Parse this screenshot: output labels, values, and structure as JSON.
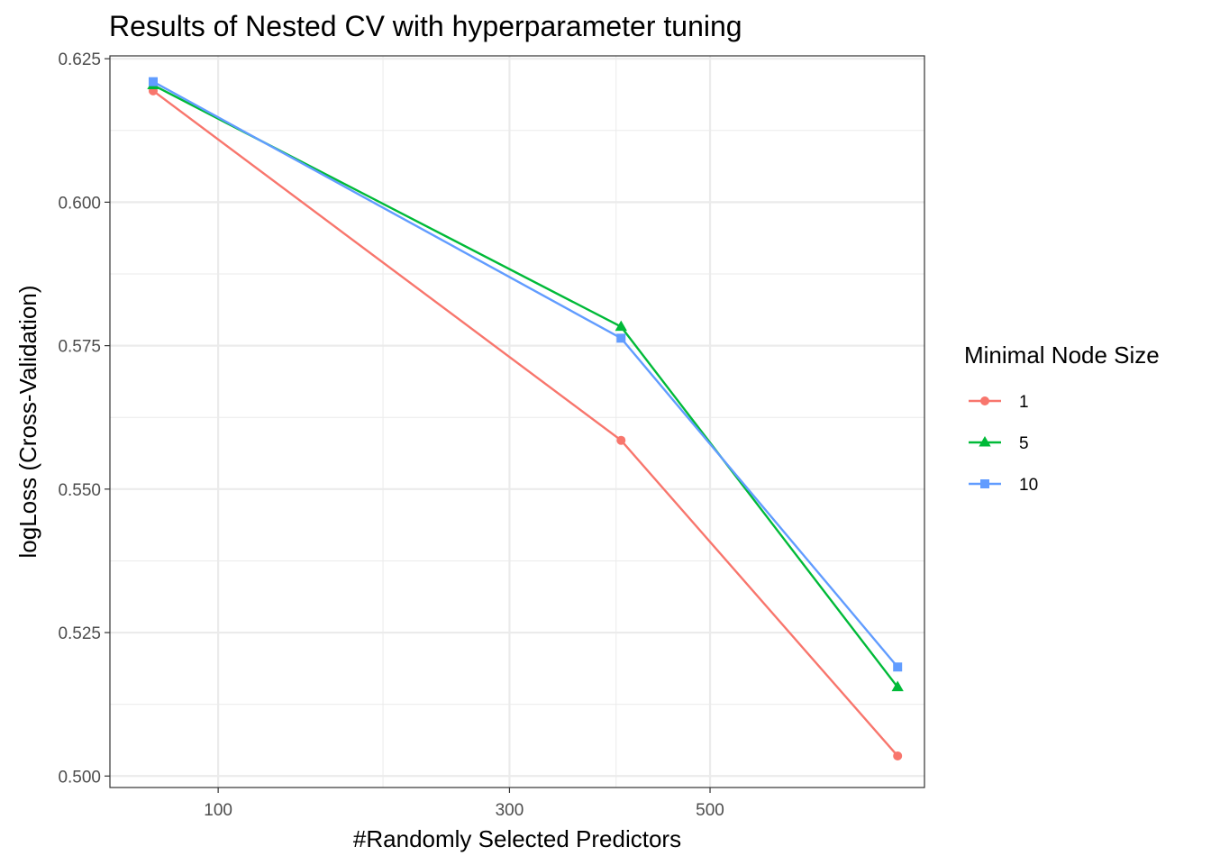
{
  "chart_data": {
    "type": "line",
    "title": "Results of Nested CV with hyperparameter tuning",
    "xlabel": "#Randomly Selected Predictors",
    "ylabel": "logLoss (Cross-Validation)",
    "x_scale": "sqrt",
    "xlim": [
      53,
      770
    ],
    "ylim": [
      0.498,
      0.6255
    ],
    "x_ticks": [
      100,
      300,
      500
    ],
    "x_ticks_minor": [
      200,
      400
    ],
    "y_ticks": [
      0.5,
      0.525,
      0.55,
      0.575,
      0.6,
      0.625
    ],
    "y_tick_labels": [
      "0.500",
      "0.525",
      "0.550",
      "0.575",
      "0.600",
      "0.625"
    ],
    "grid": true,
    "legend": {
      "title": "Minimal Node Size",
      "position": "right"
    },
    "series": [
      {
        "name": "1",
        "color": "#F8766D",
        "shape": "circle",
        "x": [
          70,
          405,
          733
        ],
        "y": [
          0.6194,
          0.5585,
          0.5035
        ]
      },
      {
        "name": "5",
        "color": "#00BA38",
        "shape": "triangle",
        "x": [
          70,
          405,
          733
        ],
        "y": [
          0.6204,
          0.5783,
          0.5155
        ]
      },
      {
        "name": "10",
        "color": "#619CFF",
        "shape": "square",
        "x": [
          70,
          405,
          733
        ],
        "y": [
          0.621,
          0.5763,
          0.519
        ]
      }
    ]
  }
}
